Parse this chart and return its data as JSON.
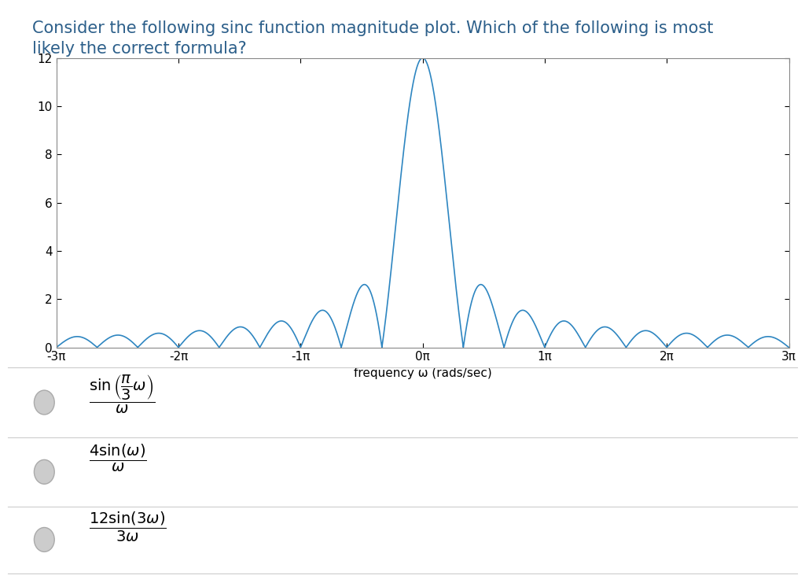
{
  "title_line1": "Consider the following sinc function magnitude plot. Which of the following is most",
  "title_line2": "likely the correct formula?",
  "title_color": "#2c5f8a",
  "xlabel": "frequency ω (rads/sec)",
  "xlim": [
    -9.42477796076938,
    9.42477796076938
  ],
  "ylim": [
    0,
    12
  ],
  "yticks": [
    0,
    2,
    4,
    6,
    8,
    10,
    12
  ],
  "xtick_labels": [
    "-3π",
    "-2π",
    "-1π",
    "0π",
    "1π",
    "2π",
    "3π"
  ],
  "xtick_values": [
    -9.42477796076938,
    -6.28318530717959,
    -3.14159265358979,
    0,
    3.14159265358979,
    6.28318530717959,
    9.42477796076938
  ],
  "line_color": "#2e86c1",
  "background_color": "#ffffff",
  "separator_color": "#cccccc",
  "radio_color": "#cccccc",
  "radio_edge_color": "#aaaaaa",
  "option1": "$\\dfrac{\\sin\\left(\\dfrac{\\pi}{3}\\omega\\right)}{\\omega}$",
  "option2": "$\\dfrac{4\\sin(\\omega)}{\\omega}$",
  "option3": "$\\dfrac{12\\sin(3\\omega)}{3\\omega}$",
  "title_fontsize": 15,
  "tick_fontsize": 11,
  "xlabel_fontsize": 11
}
